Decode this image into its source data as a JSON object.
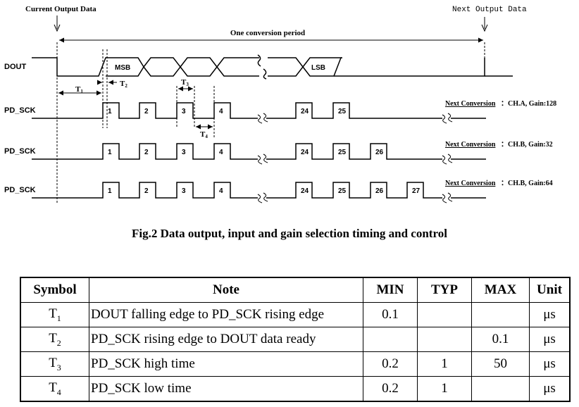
{
  "diagram": {
    "current_output_label": "Current Output Data",
    "next_output_label": "Next Output Data",
    "period_label": "One conversion period",
    "dout_label": "DOUT",
    "msb_label": "MSB",
    "lsb_label": "LSB",
    "t1": {
      "base": "T",
      "sub": "1"
    },
    "t2": {
      "base": "T",
      "sub": "2"
    },
    "t3": {
      "base": "T",
      "sub": "3"
    },
    "t4": {
      "base": "T",
      "sub": "4"
    },
    "rows": [
      {
        "label": "PD_SCK",
        "pulses": [
          "1",
          "2",
          "3",
          "4",
          "24",
          "25"
        ],
        "next_link": "Next Conversion",
        "next_value": "：CH.A, Gain:128"
      },
      {
        "label": "PD_SCK",
        "pulses": [
          "1",
          "2",
          "3",
          "4",
          "24",
          "25",
          "26"
        ],
        "next_link": "Next Conversion",
        "next_value": "：CH.B, Gain:32"
      },
      {
        "label": "PD_SCK",
        "pulses": [
          "1",
          "2",
          "3",
          "4",
          "24",
          "25",
          "26",
          "27"
        ],
        "next_link": "Next Conversion",
        "next_value": "：CH.B, Gain:64"
      }
    ]
  },
  "caption": "Fig.2 Data output, input and gain selection timing and control",
  "table": {
    "headers": [
      "Symbol",
      "Note",
      "MIN",
      "TYP",
      "MAX",
      "Unit"
    ],
    "rows": [
      {
        "symbol": "T",
        "sub": "1",
        "note": "DOUT falling edge to PD_SCK rising edge",
        "min": "0.1",
        "typ": "",
        "max": "",
        "unit": "μs"
      },
      {
        "symbol": "T",
        "sub": "2",
        "note": "PD_SCK rising edge to DOUT data ready",
        "min": "",
        "typ": "",
        "max": "0.1",
        "unit": "μs"
      },
      {
        "symbol": "T",
        "sub": "3",
        "note": "PD_SCK high time",
        "min": "0.2",
        "typ": "1",
        "max": "50",
        "unit": "μs"
      },
      {
        "symbol": "T",
        "sub": "4",
        "note": "PD_SCK low time",
        "min": "0.2",
        "typ": "1",
        "max": "",
        "unit": "μs"
      }
    ]
  }
}
